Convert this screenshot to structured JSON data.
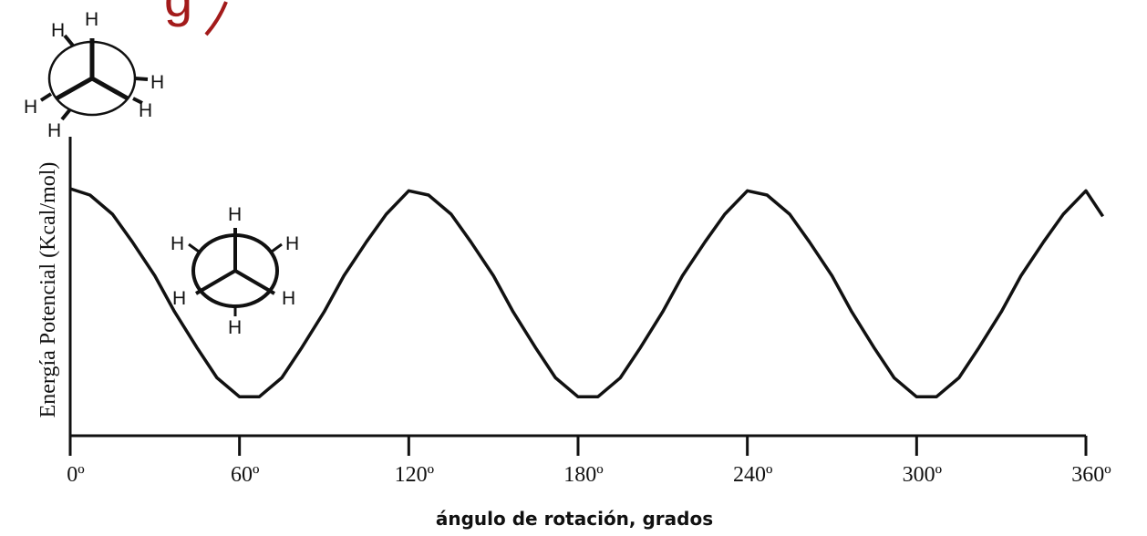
{
  "header_fragment": "g",
  "chart_data": {
    "type": "line",
    "title": "",
    "xlabel": "ángulo de rotación, grados",
    "ylabel": "Energía Potencial (Kcal/mol)",
    "xlim": [
      0,
      360
    ],
    "ylim": [
      0,
      1
    ],
    "x_ticks": [
      0,
      60,
      120,
      180,
      240,
      300,
      360
    ],
    "x_tick_labels": [
      "0º",
      "60º",
      "120º",
      "180º",
      "240º",
      "300º",
      "360º"
    ],
    "grid": false,
    "series": [
      {
        "x": [
          0,
          7,
          15,
          22,
          30,
          37,
          45,
          52,
          60,
          67,
          75,
          82,
          90,
          97,
          105,
          112,
          120,
          127,
          135,
          142,
          150,
          157,
          165,
          172,
          180,
          187,
          195,
          202,
          210,
          217,
          225,
          232,
          240,
          247,
          255,
          262,
          270,
          277,
          285,
          292,
          300,
          307,
          315,
          322,
          330,
          337,
          345,
          352,
          360,
          366
        ],
        "values": [
          1.0,
          0.97,
          0.88,
          0.75,
          0.59,
          0.42,
          0.25,
          0.11,
          0.02,
          0.02,
          0.11,
          0.25,
          0.42,
          0.59,
          0.75,
          0.88,
          0.99,
          0.97,
          0.88,
          0.75,
          0.59,
          0.42,
          0.25,
          0.11,
          0.02,
          0.02,
          0.11,
          0.25,
          0.42,
          0.59,
          0.75,
          0.88,
          0.99,
          0.97,
          0.88,
          0.75,
          0.59,
          0.42,
          0.25,
          0.11,
          0.02,
          0.02,
          0.11,
          0.25,
          0.42,
          0.59,
          0.75,
          0.88,
          0.99,
          0.87
        ]
      }
    ],
    "annotations": [
      {
        "kind": "newman-projection",
        "conformation": "eclipsed",
        "labels": [
          "H",
          "H",
          "H",
          "H",
          "H",
          "H"
        ]
      },
      {
        "kind": "newman-projection",
        "conformation": "staggered",
        "labels": [
          "H",
          "H",
          "H",
          "H",
          "H",
          "H"
        ]
      }
    ]
  }
}
